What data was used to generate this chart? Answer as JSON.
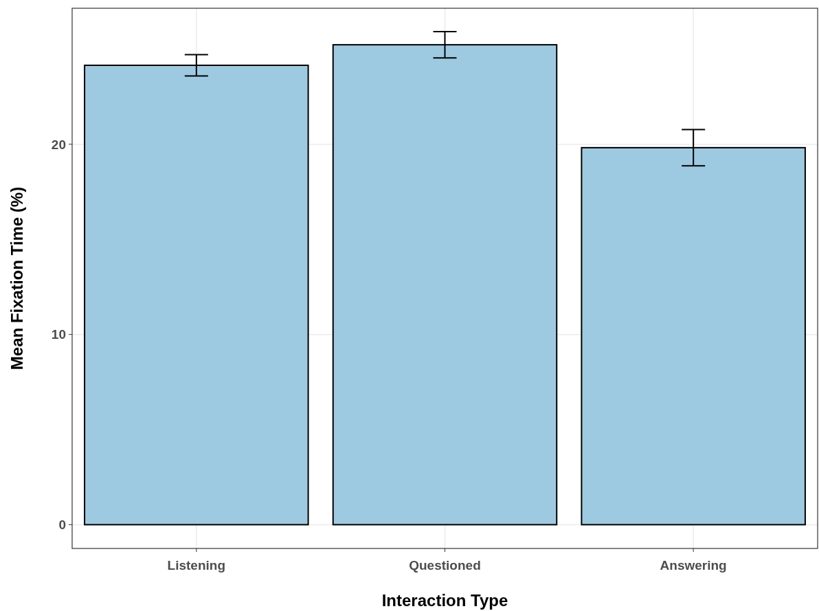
{
  "chart_data": {
    "type": "bar",
    "xlabel": "Interaction Type",
    "ylabel": "Mean Fixation Time (%)",
    "categories": [
      "Listening",
      "Questioned",
      "Answering"
    ],
    "values": [
      24.15,
      25.23,
      19.82
    ],
    "errors": [
      0.56,
      0.69,
      0.95
    ],
    "color": "#9ecae1",
    "ylim": [
      -1.25,
      27.15
    ],
    "yticks": [
      0,
      10,
      20
    ],
    "grid": true
  }
}
